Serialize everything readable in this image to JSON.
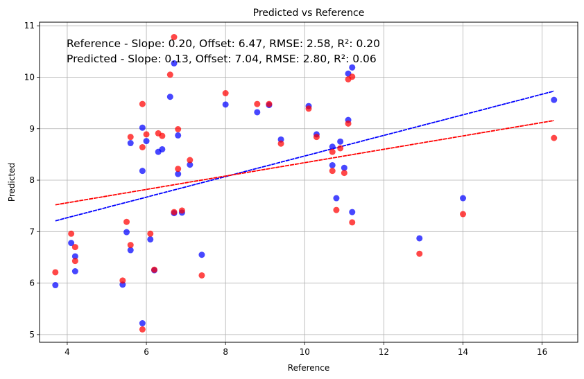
{
  "chart_data": {
    "type": "scatter",
    "title": "Predicted vs Reference",
    "xlabel": "Reference",
    "ylabel": "Predicted",
    "xlim": [
      3.3,
      16.9
    ],
    "ylim": [
      4.85,
      11.07
    ],
    "xticks": [
      4,
      6,
      8,
      10,
      12,
      14,
      16
    ],
    "yticks": [
      5,
      6,
      7,
      8,
      9,
      10,
      11
    ],
    "grid": true,
    "annotations": [
      "Reference - Slope: 0.20, Offset: 6.47, RMSE: 2.58, R²: 0.20",
      "Predicted - Slope: 0.13, Offset: 7.04, RMSE: 2.80, R²: 0.06"
    ],
    "series": [
      {
        "color": "#0000ff",
        "points": [
          [
            3.7,
            5.96
          ],
          [
            4.1,
            6.78
          ],
          [
            4.2,
            6.52
          ],
          [
            4.2,
            6.23
          ],
          [
            5.4,
            5.97
          ],
          [
            5.5,
            6.99
          ],
          [
            5.6,
            6.64
          ],
          [
            5.6,
            8.72
          ],
          [
            5.9,
            9.02
          ],
          [
            5.9,
            8.18
          ],
          [
            5.9,
            5.22
          ],
          [
            6.0,
            8.76
          ],
          [
            6.1,
            6.85
          ],
          [
            6.2,
            6.25
          ],
          [
            6.3,
            8.55
          ],
          [
            6.4,
            8.6
          ],
          [
            6.6,
            9.62
          ],
          [
            6.7,
            10.27
          ],
          [
            6.7,
            7.36
          ],
          [
            6.8,
            8.87
          ],
          [
            6.8,
            8.12
          ],
          [
            6.9,
            7.37
          ],
          [
            7.1,
            8.3
          ],
          [
            7.4,
            6.55
          ],
          [
            8.0,
            9.47
          ],
          [
            8.8,
            9.32
          ],
          [
            9.1,
            9.46
          ],
          [
            9.4,
            8.79
          ],
          [
            10.1,
            9.44
          ],
          [
            10.3,
            8.89
          ],
          [
            10.7,
            8.65
          ],
          [
            10.7,
            8.29
          ],
          [
            10.8,
            7.65
          ],
          [
            10.9,
            8.75
          ],
          [
            11.0,
            8.24
          ],
          [
            11.1,
            10.07
          ],
          [
            11.1,
            9.17
          ],
          [
            11.2,
            10.19
          ],
          [
            11.2,
            7.38
          ],
          [
            12.9,
            6.87
          ],
          [
            14.0,
            7.65
          ],
          [
            16.3,
            9.56
          ]
        ],
        "fit": {
          "slope": 0.2,
          "offset": 6.47
        }
      },
      {
        "color": "#ff0000",
        "points": [
          [
            3.7,
            6.21
          ],
          [
            4.1,
            6.96
          ],
          [
            4.2,
            6.7
          ],
          [
            4.2,
            6.43
          ],
          [
            5.4,
            6.05
          ],
          [
            5.5,
            7.19
          ],
          [
            5.6,
            6.74
          ],
          [
            5.6,
            8.84
          ],
          [
            5.9,
            9.48
          ],
          [
            5.9,
            8.64
          ],
          [
            5.9,
            5.1
          ],
          [
            6.0,
            8.89
          ],
          [
            6.1,
            6.96
          ],
          [
            6.2,
            6.26
          ],
          [
            6.3,
            8.91
          ],
          [
            6.4,
            8.86
          ],
          [
            6.6,
            10.05
          ],
          [
            6.7,
            10.78
          ],
          [
            6.7,
            7.38
          ],
          [
            6.8,
            8.99
          ],
          [
            6.8,
            8.22
          ],
          [
            6.9,
            7.41
          ],
          [
            7.1,
            8.39
          ],
          [
            7.4,
            6.15
          ],
          [
            8.0,
            9.69
          ],
          [
            8.8,
            9.48
          ],
          [
            9.1,
            9.48
          ],
          [
            9.4,
            8.71
          ],
          [
            10.1,
            9.39
          ],
          [
            10.3,
            8.84
          ],
          [
            10.7,
            8.55
          ],
          [
            10.7,
            8.18
          ],
          [
            10.8,
            7.42
          ],
          [
            10.9,
            8.62
          ],
          [
            11.0,
            8.14
          ],
          [
            11.1,
            9.96
          ],
          [
            11.1,
            9.1
          ],
          [
            11.2,
            10.01
          ],
          [
            11.2,
            7.18
          ],
          [
            12.9,
            6.57
          ],
          [
            14.0,
            7.34
          ],
          [
            16.3,
            8.82
          ]
        ],
        "fit": {
          "slope": 0.13,
          "offset": 7.04
        }
      }
    ]
  }
}
